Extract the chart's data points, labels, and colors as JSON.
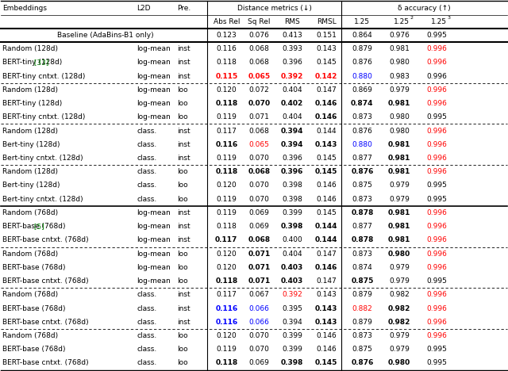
{
  "baseline": {
    "label": "Baseline (AdaBins-B1 only)",
    "values": [
      "0.123",
      "0.076",
      "0.413",
      "0.151",
      "0.864",
      "0.976",
      "0.995"
    ],
    "bold": [
      false,
      false,
      false,
      false,
      false,
      false,
      false
    ],
    "colors": [
      "black",
      "black",
      "black",
      "black",
      "black",
      "black",
      "black"
    ]
  },
  "rows": [
    {
      "emb": "Random (128d)",
      "l2d": "log-mean",
      "pre": "inst",
      "vals": [
        "0.116",
        "0.068",
        "0.393",
        "0.143",
        "0.879",
        "0.981",
        "0.996"
      ],
      "bold": [
        false,
        false,
        false,
        false,
        false,
        false,
        false
      ],
      "colors": [
        "black",
        "black",
        "black",
        "black",
        "black",
        "black",
        "red"
      ]
    },
    {
      "emb": "BERT-tiny (128d)",
      "l2d": "log-mean",
      "pre": "inst",
      "vals": [
        "0.118",
        "0.068",
        "0.396",
        "0.145",
        "0.876",
        "0.980",
        "0.996"
      ],
      "bold": [
        false,
        false,
        false,
        false,
        false,
        false,
        false
      ],
      "colors": [
        "black",
        "black",
        "black",
        "black",
        "black",
        "black",
        "red"
      ],
      "ref": "[33]",
      "ref_color": "green"
    },
    {
      "emb": "BERT-tiny cntxt. (128d)",
      "l2d": "log-mean",
      "pre": "inst",
      "vals": [
        "0.115",
        "0.065",
        "0.392",
        "0.142",
        "0.880",
        "0.983",
        "0.996"
      ],
      "bold": [
        true,
        true,
        true,
        true,
        false,
        false,
        false
      ],
      "colors": [
        "red",
        "red",
        "red",
        "red",
        "blue",
        "black",
        "black"
      ]
    },
    {
      "emb": "Random (128d)",
      "l2d": "log-mean",
      "pre": "loo",
      "vals": [
        "0.120",
        "0.072",
        "0.404",
        "0.147",
        "0.869",
        "0.979",
        "0.996"
      ],
      "bold": [
        false,
        false,
        false,
        false,
        false,
        false,
        false
      ],
      "colors": [
        "black",
        "black",
        "black",
        "black",
        "black",
        "black",
        "red"
      ]
    },
    {
      "emb": "BERT-tiny (128d)",
      "l2d": "log-mean",
      "pre": "loo",
      "vals": [
        "0.118",
        "0.070",
        "0.402",
        "0.146",
        "0.874",
        "0.981",
        "0.996"
      ],
      "bold": [
        true,
        true,
        true,
        true,
        true,
        true,
        false
      ],
      "colors": [
        "black",
        "black",
        "black",
        "black",
        "black",
        "black",
        "red"
      ]
    },
    {
      "emb": "BERT-tiny cntxt. (128d)",
      "l2d": "log-mean",
      "pre": "loo",
      "vals": [
        "0.119",
        "0.071",
        "0.404",
        "0.146",
        "0.873",
        "0.980",
        "0.995"
      ],
      "bold": [
        false,
        false,
        false,
        true,
        false,
        false,
        false
      ],
      "colors": [
        "black",
        "black",
        "black",
        "black",
        "black",
        "black",
        "black"
      ]
    },
    {
      "emb": "Random (128d)",
      "l2d": "class.",
      "pre": "inst",
      "vals": [
        "0.117",
        "0.068",
        "0.394",
        "0.144",
        "0.876",
        "0.980",
        "0.996"
      ],
      "bold": [
        false,
        false,
        true,
        false,
        false,
        false,
        false
      ],
      "colors": [
        "black",
        "black",
        "black",
        "black",
        "black",
        "black",
        "red"
      ]
    },
    {
      "emb": "Bert-tiny (128d)",
      "l2d": "class.",
      "pre": "inst",
      "vals": [
        "0.116",
        "0.065",
        "0.394",
        "0.143",
        "0.880",
        "0.981",
        "0.996"
      ],
      "bold": [
        true,
        false,
        true,
        true,
        false,
        true,
        false
      ],
      "colors": [
        "black",
        "red",
        "black",
        "black",
        "blue",
        "black",
        "red"
      ]
    },
    {
      "emb": "Bert-tiny cntxt. (128d)",
      "l2d": "class.",
      "pre": "inst",
      "vals": [
        "0.119",
        "0.070",
        "0.396",
        "0.145",
        "0.877",
        "0.981",
        "0.996"
      ],
      "bold": [
        false,
        false,
        false,
        false,
        false,
        true,
        false
      ],
      "colors": [
        "black",
        "black",
        "black",
        "black",
        "black",
        "black",
        "red"
      ]
    },
    {
      "emb": "Random (128d)",
      "l2d": "class.",
      "pre": "loo",
      "vals": [
        "0.118",
        "0.068",
        "0.396",
        "0.145",
        "0.876",
        "0.981",
        "0.996"
      ],
      "bold": [
        true,
        true,
        true,
        true,
        true,
        true,
        false
      ],
      "colors": [
        "black",
        "black",
        "black",
        "black",
        "black",
        "black",
        "red"
      ]
    },
    {
      "emb": "Bert-tiny (128d)",
      "l2d": "class.",
      "pre": "loo",
      "vals": [
        "0.120",
        "0.070",
        "0.398",
        "0.146",
        "0.875",
        "0.979",
        "0.995"
      ],
      "bold": [
        false,
        false,
        false,
        false,
        false,
        false,
        false
      ],
      "colors": [
        "black",
        "black",
        "black",
        "black",
        "black",
        "black",
        "black"
      ]
    },
    {
      "emb": "Bert-tiny cntxt. (128d)",
      "l2d": "class.",
      "pre": "loo",
      "vals": [
        "0.119",
        "0.070",
        "0.398",
        "0.146",
        "0.873",
        "0.979",
        "0.995"
      ],
      "bold": [
        false,
        false,
        false,
        false,
        false,
        false,
        false
      ],
      "colors": [
        "black",
        "black",
        "black",
        "black",
        "black",
        "black",
        "black"
      ]
    },
    {
      "emb": "Random (768d)",
      "l2d": "log-mean",
      "pre": "inst",
      "vals": [
        "0.119",
        "0.069",
        "0.399",
        "0.145",
        "0.878",
        "0.981",
        "0.996"
      ],
      "bold": [
        false,
        false,
        false,
        false,
        true,
        true,
        false
      ],
      "colors": [
        "black",
        "black",
        "black",
        "black",
        "black",
        "black",
        "red"
      ]
    },
    {
      "emb": "BERT-base (768d)",
      "l2d": "log-mean",
      "pre": "inst",
      "vals": [
        "0.118",
        "0.069",
        "0.398",
        "0.144",
        "0.877",
        "0.981",
        "0.996"
      ],
      "bold": [
        false,
        false,
        true,
        true,
        false,
        true,
        false
      ],
      "colors": [
        "black",
        "black",
        "black",
        "black",
        "black",
        "black",
        "red"
      ],
      "ref": "[5]",
      "ref_color": "green"
    },
    {
      "emb": "BERT-base cntxt. (768d)",
      "l2d": "log-mean",
      "pre": "inst",
      "vals": [
        "0.117",
        "0.068",
        "0.400",
        "0.144",
        "0.878",
        "0.981",
        "0.996"
      ],
      "bold": [
        true,
        true,
        false,
        true,
        true,
        true,
        false
      ],
      "colors": [
        "black",
        "black",
        "black",
        "black",
        "black",
        "black",
        "red"
      ]
    },
    {
      "emb": "Random (768d)",
      "l2d": "log-mean",
      "pre": "loo",
      "vals": [
        "0.120",
        "0.071",
        "0.404",
        "0.147",
        "0.873",
        "0.980",
        "0.996"
      ],
      "bold": [
        false,
        true,
        false,
        false,
        false,
        true,
        false
      ],
      "colors": [
        "black",
        "black",
        "black",
        "black",
        "black",
        "black",
        "red"
      ]
    },
    {
      "emb": "BERT-base (768d)",
      "l2d": "log-mean",
      "pre": "loo",
      "vals": [
        "0.120",
        "0.071",
        "0.403",
        "0.146",
        "0.874",
        "0.979",
        "0.996"
      ],
      "bold": [
        false,
        true,
        true,
        true,
        false,
        false,
        false
      ],
      "colors": [
        "black",
        "black",
        "black",
        "black",
        "black",
        "black",
        "red"
      ]
    },
    {
      "emb": "BERT-base cntxt. (768d)",
      "l2d": "log-mean",
      "pre": "loo",
      "vals": [
        "0.118",
        "0.071",
        "0.403",
        "0.147",
        "0.875",
        "0.979",
        "0.995"
      ],
      "bold": [
        true,
        true,
        true,
        false,
        true,
        false,
        false
      ],
      "colors": [
        "black",
        "black",
        "black",
        "black",
        "black",
        "black",
        "black"
      ]
    },
    {
      "emb": "Random (768d)",
      "l2d": "class.",
      "pre": "inst",
      "vals": [
        "0.117",
        "0.067",
        "0.392",
        "0.143",
        "0.879",
        "0.982",
        "0.996"
      ],
      "bold": [
        false,
        false,
        false,
        false,
        false,
        false,
        false
      ],
      "colors": [
        "black",
        "black",
        "red",
        "black",
        "black",
        "black",
        "red"
      ]
    },
    {
      "emb": "BERT-base (768d)",
      "l2d": "class.",
      "pre": "inst",
      "vals": [
        "0.116",
        "0.066",
        "0.395",
        "0.143",
        "0.882",
        "0.982",
        "0.996"
      ],
      "bold": [
        true,
        false,
        false,
        true,
        false,
        true,
        false
      ],
      "colors": [
        "blue",
        "blue",
        "black",
        "black",
        "red",
        "black",
        "red"
      ]
    },
    {
      "emb": "BERT-base cntxt. (768d)",
      "l2d": "class.",
      "pre": "inst",
      "vals": [
        "0.116",
        "0.066",
        "0.394",
        "0.143",
        "0.879",
        "0.982",
        "0.996"
      ],
      "bold": [
        true,
        false,
        false,
        true,
        false,
        true,
        false
      ],
      "colors": [
        "blue",
        "blue",
        "black",
        "black",
        "black",
        "black",
        "red"
      ]
    },
    {
      "emb": "Random (768d)",
      "l2d": "class.",
      "pre": "loo",
      "vals": [
        "0.120",
        "0.070",
        "0.399",
        "0.146",
        "0.873",
        "0.979",
        "0.996"
      ],
      "bold": [
        false,
        false,
        false,
        false,
        false,
        false,
        false
      ],
      "colors": [
        "black",
        "black",
        "black",
        "black",
        "black",
        "black",
        "red"
      ]
    },
    {
      "emb": "BERT-base (768d)",
      "l2d": "class.",
      "pre": "loo",
      "vals": [
        "0.119",
        "0.070",
        "0.399",
        "0.146",
        "0.875",
        "0.979",
        "0.995"
      ],
      "bold": [
        false,
        false,
        false,
        false,
        false,
        false,
        false
      ],
      "colors": [
        "black",
        "black",
        "black",
        "black",
        "black",
        "black",
        "black"
      ]
    },
    {
      "emb": "BERT-base cntxt. (768d)",
      "l2d": "class.",
      "pre": "loo",
      "vals": [
        "0.118",
        "0.069",
        "0.398",
        "0.145",
        "0.876",
        "0.980",
        "0.995"
      ],
      "bold": [
        true,
        false,
        true,
        true,
        true,
        true,
        false
      ],
      "colors": [
        "black",
        "black",
        "black",
        "black",
        "black",
        "black",
        "black"
      ]
    }
  ],
  "group_separators": [
    3,
    6,
    9,
    12,
    15,
    18,
    21
  ],
  "major_separator": 12
}
